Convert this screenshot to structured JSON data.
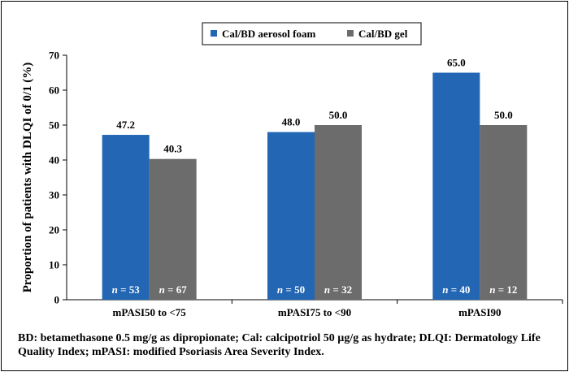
{
  "chart_data": {
    "type": "bar",
    "categories": [
      "mPASI50 to <75",
      "mPASI75 to <90",
      "mPASI90"
    ],
    "series": [
      {
        "name": "Cal/BD aerosol foam",
        "color": "#2266b4",
        "values": [
          47.2,
          48.0,
          65.0
        ],
        "value_labels": [
          "47.2",
          "48.0",
          "65.0"
        ],
        "n_labels": [
          "53",
          "50",
          "40"
        ]
      },
      {
        "name": "Cal/BD gel",
        "color": "#6c6c6c",
        "values": [
          40.3,
          50.0,
          50.0
        ],
        "value_labels": [
          "40.3",
          "50.0",
          "50.0"
        ],
        "n_labels": [
          "67",
          "32",
          "12"
        ]
      }
    ],
    "n_prefix": "n",
    "n_equals": "= ",
    "ylabel": "Proportion of patients with DLQI of 0/1 (%)",
    "xlabel": "",
    "ylim": [
      0,
      70
    ],
    "yticks": [
      0,
      10,
      20,
      30,
      40,
      50,
      60,
      70
    ],
    "grid": false,
    "legend_position": "top-right"
  },
  "footnote": "BD: betamethasone 0.5 mg/g as dipropionate; Cal: calcipotriol 50 µg/g as hydrate; DLQI: Dermatology Life Quality Index; mPASI: modified Psoriasis Area Severity Index."
}
